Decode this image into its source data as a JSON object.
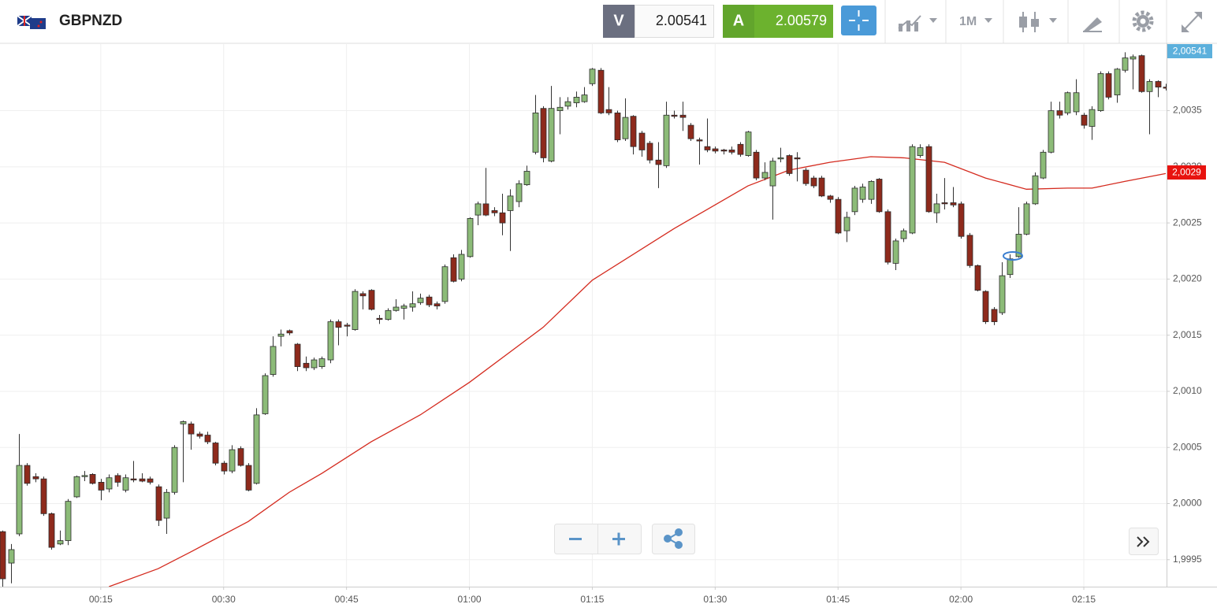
{
  "header": {
    "symbol": "GBPNZD",
    "bid_label": "V",
    "bid": 2.00541,
    "ask_label": "A",
    "ask": 2.00579,
    "timeframe": "1M"
  },
  "chart_data": {
    "type": "candlestick",
    "up_color": "#8cbb78",
    "down_color": "#8e2a1c",
    "grid": true,
    "xlim": [
      2.7,
      145.1
    ],
    "ylim": [
      1.99926,
      2.0041
    ],
    "xticks": [
      {
        "value": 15,
        "label": "00:15"
      },
      {
        "value": 30,
        "label": "00:30"
      },
      {
        "value": 45,
        "label": "00:45"
      },
      {
        "value": 60,
        "label": "01:00"
      },
      {
        "value": 75,
        "label": "01:15"
      },
      {
        "value": 90,
        "label": "01:30"
      },
      {
        "value": 105,
        "label": "01:45"
      },
      {
        "value": 120,
        "label": "02:00"
      },
      {
        "value": 135,
        "label": "02:15"
      }
    ],
    "yticks": [
      {
        "value": 1.9995,
        "label": "1,9995"
      },
      {
        "value": 2.0,
        "label": "2,0000"
      },
      {
        "value": 2.0005,
        "label": "2,0005"
      },
      {
        "value": 2.001,
        "label": "2,0010"
      },
      {
        "value": 2.0015,
        "label": "2,0015"
      },
      {
        "value": 2.002,
        "label": "2,0020"
      },
      {
        "value": 2.0025,
        "label": "2,0025"
      },
      {
        "value": 2.003,
        "label": "2,0030"
      },
      {
        "value": 2.0035,
        "label": "2,0035"
      }
    ],
    "price_labels": {
      "bid": "2,00541",
      "moving_average": "2,0029"
    },
    "x": [
      3,
      4,
      5,
      6,
      7,
      8,
      9,
      10,
      11,
      12,
      13,
      14,
      15,
      16,
      17,
      18,
      19,
      20,
      21,
      22,
      23,
      24,
      25,
      26,
      27,
      28,
      29,
      30,
      31,
      32,
      33,
      34,
      35,
      36,
      37,
      38,
      39,
      40,
      41,
      42,
      43,
      44,
      45,
      46,
      47,
      48,
      49,
      50,
      51,
      52,
      53,
      54,
      55,
      56,
      57,
      58,
      59,
      60,
      61,
      62,
      63,
      64,
      65,
      66,
      67,
      68,
      69,
      70,
      71,
      72,
      73,
      74,
      75,
      76,
      77,
      78,
      79,
      80,
      81,
      82,
      83,
      84,
      85,
      86,
      87,
      88,
      89,
      90,
      91,
      92,
      93,
      94,
      95,
      96,
      97,
      98,
      99,
      100,
      101,
      102,
      103,
      104,
      105,
      106,
      107,
      108,
      109,
      110,
      111,
      112,
      113,
      114,
      115,
      116,
      117,
      118,
      119,
      120,
      121,
      122,
      123,
      124,
      125,
      126,
      127,
      128,
      129,
      130,
      131,
      132,
      133,
      134,
      135,
      136,
      137,
      138,
      139,
      140,
      141,
      142,
      143,
      144,
      145
    ],
    "open": [
      1.99975,
      1.99947,
      1.99973,
      2.00034,
      2.00024,
      2.00022,
      1.99991,
      1.99964,
      1.99967,
      2.00006,
      2.00024,
      2.00026,
      2.00019,
      2.00013,
      2.00025,
      2.00012,
      2.00022,
      2.00022,
      2.00022,
      2.00015,
      1.99987,
      2.0001,
      2.00071,
      2.00071,
      2.00062,
      2.00061,
      2.00054,
      2.00036,
      2.00029,
      2.00049,
      2.00034,
      2.00018,
      2.0008,
      2.00115,
      2.00149,
      2.00154,
      2.00142,
      2.00125,
      2.00121,
      2.00122,
      2.00128,
      2.00162,
      2.00159,
      2.00155,
      2.00187,
      2.0019,
      2.00165,
      2.00164,
      2.00172,
      2.00174,
      2.00175,
      2.00179,
      2.00184,
      2.00178,
      2.0018,
      2.00219,
      2.002,
      2.0022,
      2.00257,
      2.00267,
      2.00261,
      2.00259,
      2.00261,
      2.00269,
      2.00284,
      2.00313,
      2.00352,
      2.00305,
      2.0035,
      2.00354,
      2.00357,
      2.00358,
      2.00374,
      2.00386,
      2.00351,
      2.00348,
      2.00325,
      2.00345,
      2.0033,
      2.00321,
      2.00306,
      2.00301,
      2.00346,
      2.00346,
      2.00337,
      2.00324,
      2.00318,
      2.00316,
      2.00315,
      2.00315,
      2.0032,
      2.0031,
      2.00313,
      2.0029,
      2.00283,
      2.00307,
      2.0031,
      2.00308,
      2.00297,
      2.0029,
      2.0029,
      2.00274,
      2.00271,
      2.00243,
      2.0026,
      2.00271,
      2.00271,
      2.00289,
      2.0026,
      2.00214,
      2.00236,
      2.00241,
      2.0031,
      2.00318,
      2.00259,
      2.00268,
      2.00268,
      2.00267,
      2.00239,
      2.00212,
      2.00189,
      2.00173,
      2.0017,
      2.00204,
      2.0022,
      2.0024,
      2.00267,
      2.0029,
      2.00313,
      2.0035,
      2.00348,
      2.00349,
      2.00346,
      2.00336,
      2.0035,
      2.00383,
      2.00364,
      2.00386,
      2.00396,
      2.00399,
      2.00367,
      2.00376,
      2.00371
    ],
    "high": [
      1.99976,
      1.99964,
      2.00062,
      2.00036,
      2.00027,
      2.00024,
      1.99992,
      1.99976,
      2.00004,
      2.00025,
      2.00029,
      2.00027,
      2.00022,
      2.00026,
      2.00027,
      2.00026,
      2.00038,
      2.00027,
      2.00024,
      2.00017,
      2.00013,
      2.00052,
      2.00074,
      2.00073,
      2.00064,
      2.00064,
      2.00055,
      2.00038,
      2.00052,
      2.00051,
      2.00036,
      2.00085,
      2.00116,
      2.00149,
      2.00155,
      2.00155,
      2.00143,
      2.00131,
      2.0013,
      2.00131,
      2.00164,
      2.00164,
      2.00161,
      2.00191,
      2.00189,
      2.00191,
      2.00168,
      2.00174,
      2.00182,
      2.00178,
      2.00189,
      2.00187,
      2.00186,
      2.0018,
      2.00213,
      2.00222,
      2.00226,
      2.00255,
      2.00269,
      2.00299,
      2.00264,
      2.00276,
      2.0028,
      2.00288,
      2.00301,
      2.00364,
      2.00354,
      2.00372,
      2.00362,
      2.00362,
      2.00367,
      2.00371,
      2.00388,
      2.00388,
      2.00371,
      2.0035,
      2.00361,
      2.00346,
      2.00332,
      2.00323,
      2.00322,
      2.00358,
      2.0035,
      2.00358,
      2.00339,
      2.00326,
      2.00343,
      2.00318,
      2.00316,
      2.00318,
      2.00322,
      2.00332,
      2.00315,
      2.00304,
      2.00308,
      2.00317,
      2.00311,
      2.00313,
      2.00299,
      2.00292,
      2.00292,
      2.00275,
      2.00273,
      2.0026,
      2.00283,
      2.00285,
      2.00288,
      2.0029,
      2.00262,
      2.00236,
      2.00245,
      2.0032,
      2.0032,
      2.0032,
      2.00276,
      2.0029,
      2.00282,
      2.00269,
      2.00241,
      2.00213,
      2.0019,
      2.00175,
      2.00215,
      2.00222,
      2.00264,
      2.00269,
      2.00295,
      2.00315,
      2.00358,
      2.00358,
      2.00367,
      2.00378,
      2.00348,
      2.00354,
      2.00385,
      2.00385,
      2.00388,
      2.00402,
      2.004,
      2.004,
      2.00378,
      2.00377,
      2.00374
    ],
    "low": [
      1.99926,
      1.99929,
      1.99971,
      2.00016,
      2.00019,
      1.99989,
      1.99959,
      1.99963,
      1.99963,
      2.00005,
      2.0002,
      2.00017,
      2.00003,
      2.0001,
      2.00015,
      2.0001,
      2.00019,
      2.00019,
      2.00017,
      1.9998,
      1.99973,
      2.00008,
      2.00019,
      2.00048,
      2.00058,
      2.00053,
      2.00034,
      2.00026,
      2.00027,
      2.00033,
      2.00011,
      2.00017,
      2.00079,
      2.00113,
      2.0014,
      2.0015,
      2.00118,
      2.00118,
      2.00119,
      2.0012,
      2.00125,
      2.00141,
      2.00149,
      2.00154,
      2.00173,
      2.00172,
      2.0016,
      2.00163,
      2.00171,
      2.00164,
      2.00171,
      2.00177,
      2.00175,
      2.00173,
      2.00178,
      2.00197,
      2.00198,
      2.00219,
      2.00248,
      2.00256,
      2.00256,
      2.00239,
      2.00225,
      2.00264,
      2.00283,
      2.00311,
      2.00304,
      2.00304,
      2.00329,
      2.00351,
      2.00353,
      2.00357,
      2.00372,
      2.00347,
      2.00346,
      2.00322,
      2.00323,
      2.00311,
      2.00309,
      2.00303,
      2.00281,
      2.00299,
      2.00343,
      2.00332,
      2.00323,
      2.00302,
      2.00313,
      2.00312,
      2.00311,
      2.00311,
      2.00309,
      2.00309,
      2.00288,
      2.00288,
      2.00253,
      2.00304,
      2.00292,
      2.00287,
      2.00283,
      2.00281,
      2.00273,
      2.00268,
      2.0024,
      2.00233,
      2.00257,
      2.00268,
      2.00267,
      2.00259,
      2.00213,
      2.00208,
      2.00233,
      2.0024,
      2.00308,
      2.00259,
      2.0025,
      2.00262,
      2.00264,
      2.00236,
      2.0021,
      2.00189,
      2.0016,
      2.00159,
      2.00168,
      2.00201,
      2.00219,
      2.00239,
      2.00266,
      2.00289,
      2.00312,
      2.00343,
      2.00346,
      2.00346,
      2.00334,
      2.00324,
      2.00349,
      2.0036,
      2.00357,
      2.00384,
      2.00369,
      2.00366,
      2.00329,
      2.00362,
      2.00368
    ],
    "close": [
      1.99933,
      1.99959,
      2.00034,
      2.00018,
      2.00022,
      1.99991,
      1.99961,
      1.99967,
      2.00002,
      2.00024,
      2.00025,
      2.00018,
      2.00012,
      2.00023,
      2.00019,
      2.00023,
      2.00021,
      2.0002,
      2.00019,
      1.99985,
      2.0001,
      2.0005,
      2.00073,
      2.00062,
      2.0006,
      2.00055,
      2.00036,
      2.00029,
      2.00048,
      2.00034,
      2.00012,
      2.00079,
      2.00114,
      2.0014,
      2.00151,
      2.00152,
      2.00122,
      2.00121,
      2.00128,
      2.00129,
      2.00162,
      2.00157,
      2.00158,
      2.00189,
      2.00185,
      2.00173,
      2.00164,
      2.00172,
      2.00175,
      2.00176,
      2.00178,
      2.00183,
      2.00177,
      2.00176,
      2.00211,
      2.00198,
      2.00222,
      2.00254,
      2.00267,
      2.00257,
      2.00259,
      2.0025,
      2.00274,
      2.00285,
      2.00296,
      2.00348,
      2.00308,
      2.00352,
      2.00353,
      2.00358,
      2.00362,
      2.00364,
      2.00387,
      2.00348,
      2.00348,
      2.00324,
      2.00344,
      2.00318,
      2.00315,
      2.00306,
      2.00302,
      2.00346,
      2.00345,
      2.00344,
      2.00325,
      2.00323,
      2.00315,
      2.00314,
      2.00314,
      2.00313,
      2.00311,
      2.00331,
      2.0029,
      2.00295,
      2.00305,
      2.00308,
      2.00294,
      2.00307,
      2.00285,
      2.00283,
      2.00274,
      2.00271,
      2.00241,
      2.00255,
      2.00281,
      2.00282,
      2.00287,
      2.0026,
      2.00215,
      2.00234,
      2.00243,
      2.00318,
      2.00317,
      2.0026,
      2.00267,
      2.00267,
      2.00266,
      2.00238,
      2.00212,
      2.0019,
      2.00162,
      2.00162,
      2.00203,
      2.00218,
      2.0024,
      2.00267,
      2.00292,
      2.00313,
      2.0035,
      2.00346,
      2.00366,
      2.00366,
      2.00337,
      2.00351,
      2.00383,
      2.00362,
      2.00387,
      2.00397,
      2.00398,
      2.00367,
      2.00376,
      2.00371,
      2.0037
    ],
    "moving_average": {
      "color": "#d42a1e",
      "x": [
        16,
        22,
        26,
        33,
        38,
        42,
        48,
        54,
        60,
        69,
        75,
        85,
        94,
        99,
        104,
        109,
        113,
        118,
        123,
        128,
        133,
        136,
        140,
        145
      ],
      "values": [
        1.99926,
        1.99942,
        1.99957,
        1.99984,
        2.0001,
        2.00027,
        2.00055,
        2.00079,
        2.00108,
        2.00157,
        2.00199,
        2.00245,
        2.00283,
        2.00297,
        2.00304,
        2.00309,
        2.00308,
        2.00304,
        2.0029,
        2.0028,
        2.00281,
        2.00281,
        2.00287,
        2.00294
      ]
    }
  }
}
